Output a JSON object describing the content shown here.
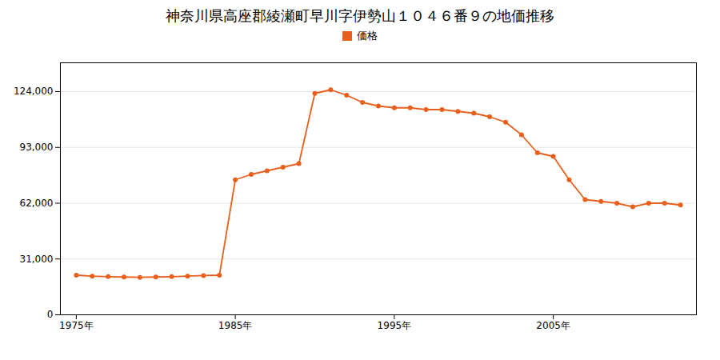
{
  "chart_data": {
    "type": "line",
    "title": "神奈川県高座郡綾瀬町早川字伊勢山１０４６番９の地価推移",
    "series": [
      {
        "name": "価格",
        "color": "#e8601c",
        "marker": "circle",
        "values": [
          22000,
          21500,
          21200,
          21000,
          20800,
          21000,
          21200,
          21500,
          21800,
          22000,
          75000,
          78000,
          80000,
          82000,
          84000,
          123000,
          125000,
          122000,
          118000,
          116000,
          115000,
          115000,
          114000,
          114000,
          113000,
          112000,
          110000,
          107000,
          100000,
          90000,
          88000,
          75000,
          64000,
          63000,
          62000,
          60000,
          62000,
          62000,
          61000
        ]
      }
    ],
    "x": [
      1975,
      1976,
      1977,
      1978,
      1979,
      1980,
      1981,
      1982,
      1983,
      1984,
      1985,
      1986,
      1987,
      1988,
      1989,
      1990,
      1991,
      1992,
      1993,
      1994,
      1995,
      1996,
      1997,
      1998,
      1999,
      2000,
      2001,
      2002,
      2003,
      2004,
      2005,
      2006,
      2007,
      2008,
      2009,
      2010,
      2011,
      2012,
      2013
    ],
    "xlim": [
      1974,
      2014
    ],
    "xticks": [
      {
        "value": 1975,
        "label": "1975年"
      },
      {
        "value": 1985,
        "label": "1985年"
      },
      {
        "value": 1995,
        "label": "1995年"
      },
      {
        "value": 2005,
        "label": "2005年"
      }
    ],
    "ylim": [
      0,
      140000
    ],
    "yticks": [
      0,
      {
        "value": 31000,
        "label": "31,000"
      },
      {
        "value": 62000,
        "label": "62,000"
      },
      {
        "value": 93000,
        "label": "93,000"
      },
      {
        "value": 124000,
        "label": "124,000"
      }
    ],
    "grid": true,
    "legend": "top"
  }
}
